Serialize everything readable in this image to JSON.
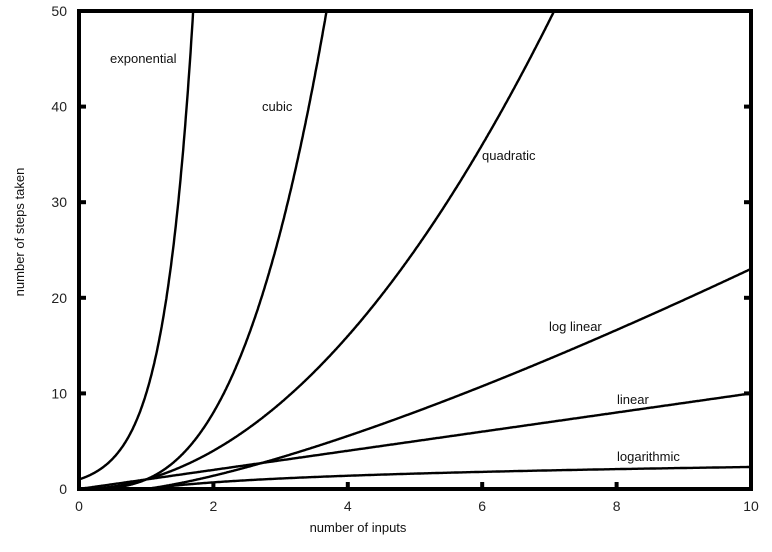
{
  "chart_data": {
    "type": "line",
    "title": "",
    "xlabel": "number of inputs",
    "ylabel": "number of steps taken",
    "xlim": [
      0,
      10
    ],
    "ylim": [
      0,
      50
    ],
    "xticks": [
      0,
      2,
      4,
      6,
      8,
      10
    ],
    "yticks": [
      0,
      10,
      20,
      30,
      40,
      50
    ],
    "grid": false,
    "legend": "none (curves labeled inline)",
    "line_color": "#000000",
    "series": [
      {
        "name": "exponential",
        "function": "10^x",
        "x": [
          0,
          0.5,
          1,
          1.5,
          1.7
        ],
        "y": [
          1,
          3.2,
          10,
          31.6,
          50
        ]
      },
      {
        "name": "cubic",
        "function": "x^3",
        "x": [
          0,
          1,
          2,
          3,
          3.68
        ],
        "y": [
          0,
          1,
          8,
          27,
          50
        ]
      },
      {
        "name": "quadratic",
        "function": "x^2",
        "x": [
          0,
          2,
          4,
          6,
          7.07
        ],
        "y": [
          0,
          4,
          16,
          36,
          50
        ]
      },
      {
        "name": "log linear",
        "function": "x ln x",
        "x": [
          1,
          2,
          4,
          6,
          8,
          10
        ],
        "y": [
          0,
          1.39,
          5.55,
          10.75,
          16.64,
          23.03
        ]
      },
      {
        "name": "linear",
        "function": "x",
        "x": [
          0,
          10
        ],
        "y": [
          0,
          10
        ]
      },
      {
        "name": "logarithmic",
        "function": "ln x",
        "x": [
          1,
          2,
          4,
          6,
          8,
          10
        ],
        "y": [
          0,
          0.69,
          1.39,
          1.79,
          2.08,
          2.3
        ]
      }
    ]
  }
}
